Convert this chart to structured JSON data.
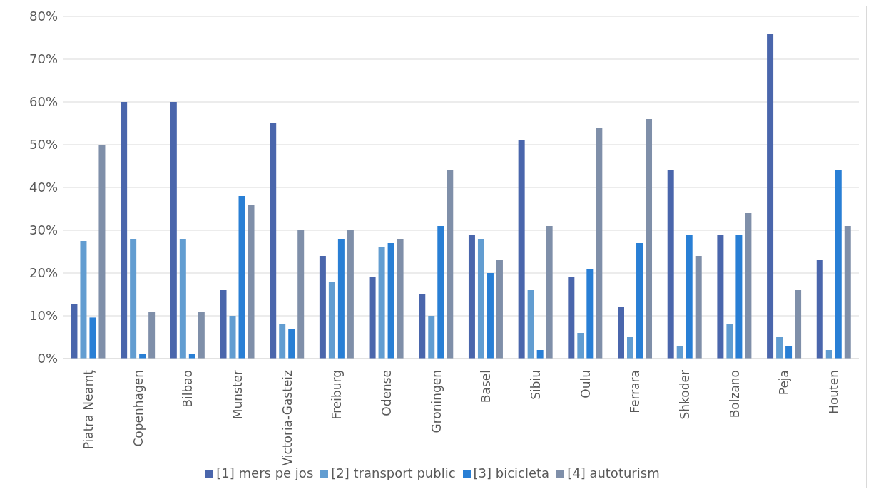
{
  "chart_data": {
    "type": "bar",
    "categories": [
      "Piatra Neamț",
      "Copenhagen",
      "Bilbao",
      "Munster",
      "Victoria-Gasteiz",
      "Freiburg",
      "Odense",
      "Groningen",
      "Basel",
      "Sibiu",
      "Oulu",
      "Ferrara",
      "Shkoder",
      "Bolzano",
      "Peja",
      "Houten"
    ],
    "series": [
      {
        "name": "[1] mers pe jos",
        "color": "#4a66ac",
        "values": [
          12.8,
          60,
          60,
          16,
          55,
          24,
          19,
          15,
          29,
          51,
          19,
          12,
          44,
          29,
          76,
          23
        ]
      },
      {
        "name": "[2] transport public",
        "color": "#629dd1",
        "values": [
          27.5,
          28,
          28,
          10,
          8,
          18,
          26,
          10,
          28,
          16,
          6,
          5,
          3,
          8,
          5,
          2
        ]
      },
      {
        "name": "[3] bicicleta",
        "color": "#297fd5",
        "values": [
          9.6,
          1,
          1,
          38,
          7,
          28,
          27,
          31,
          20,
          2,
          21,
          27,
          29,
          29,
          3,
          44
        ]
      },
      {
        "name": "[4] autoturism",
        "color": "#7f8fa9",
        "values": [
          50,
          11,
          11,
          36,
          30,
          30,
          28,
          44,
          23,
          31,
          54,
          56,
          24,
          34,
          16,
          31
        ]
      }
    ],
    "ylim": [
      0,
      80
    ],
    "yticks": [
      {
        "value": 0,
        "label": "0%"
      },
      {
        "value": 10,
        "label": "10%"
      },
      {
        "value": 20,
        "label": "20%"
      },
      {
        "value": 30,
        "label": "30%"
      },
      {
        "value": 40,
        "label": "40%"
      },
      {
        "value": 50,
        "label": "50%"
      },
      {
        "value": 60,
        "label": "60%"
      },
      {
        "value": 70,
        "label": "70%"
      },
      {
        "value": 80,
        "label": "80%"
      }
    ],
    "grid": "y",
    "legend": "bottom"
  }
}
